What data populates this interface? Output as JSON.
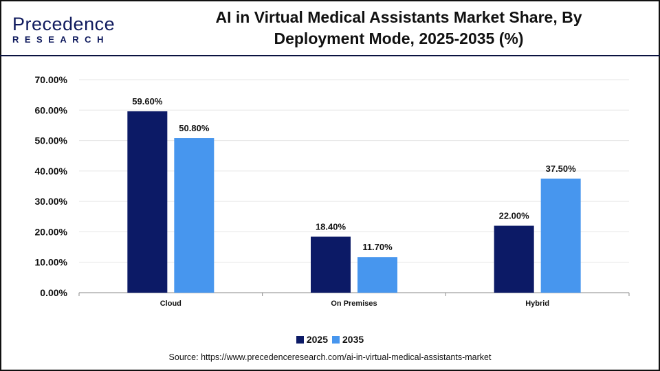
{
  "logo": {
    "line1": "Precedence",
    "line2": "RESEARCH"
  },
  "title": "AI in Virtual Medical Assistants Market Share, By Deployment Mode, 2025-2035 (%)",
  "source": "Source: https://www.precedenceresearch.com/ai-in-virtual-medical-assistants-market",
  "chart_data": {
    "type": "bar",
    "title": "AI in Virtual Medical Assistants Market Share, By Deployment Mode, 2025-2035 (%)",
    "categories": [
      "Cloud",
      "On Premises",
      "Hybrid"
    ],
    "series": [
      {
        "name": "2025",
        "values": [
          59.6,
          18.4,
          22.0
        ],
        "color": "#0c1a66",
        "labels": [
          "59.60%",
          "18.40%",
          "22.00%"
        ]
      },
      {
        "name": "2035",
        "values": [
          50.8,
          11.7,
          37.5
        ],
        "color": "#4796ee",
        "labels": [
          "50.80%",
          "11.70%",
          "37.50%"
        ]
      }
    ],
    "ylim": [
      0,
      70
    ],
    "yticks": [
      "0.00%",
      "10.00%",
      "20.00%",
      "30.00%",
      "40.00%",
      "50.00%",
      "60.00%",
      "70.00%"
    ],
    "grid": true,
    "legend": "bottom"
  }
}
